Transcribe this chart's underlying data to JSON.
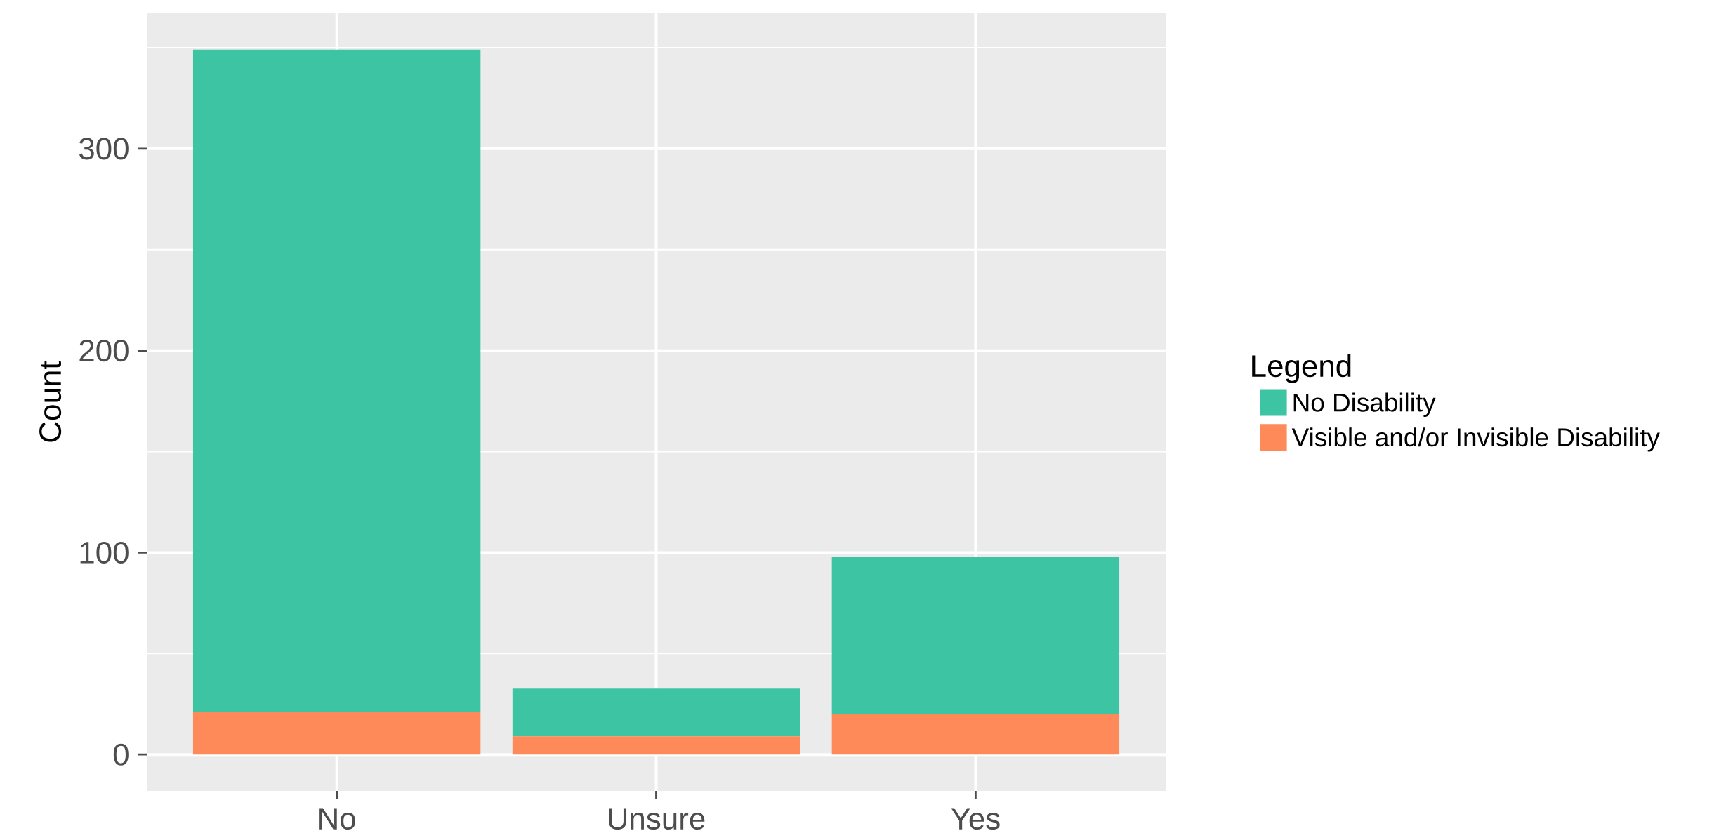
{
  "chart_data": {
    "type": "bar",
    "stacked": true,
    "ylabel": "Count",
    "legend_title": "Legend",
    "legend": "right",
    "grid": true,
    "categories": [
      "No",
      "Unsure",
      "Yes"
    ],
    "ylim": [
      -18,
      367
    ],
    "yticks": [
      0,
      100,
      200,
      300
    ],
    "series": [
      {
        "name": "Visible and/or Invisible Disability",
        "color": "#fe8a5a",
        "values": [
          21,
          9,
          20
        ]
      },
      {
        "name": "No Disability",
        "color": "#3dc5a3",
        "values": [
          328,
          24,
          78
        ]
      }
    ]
  }
}
